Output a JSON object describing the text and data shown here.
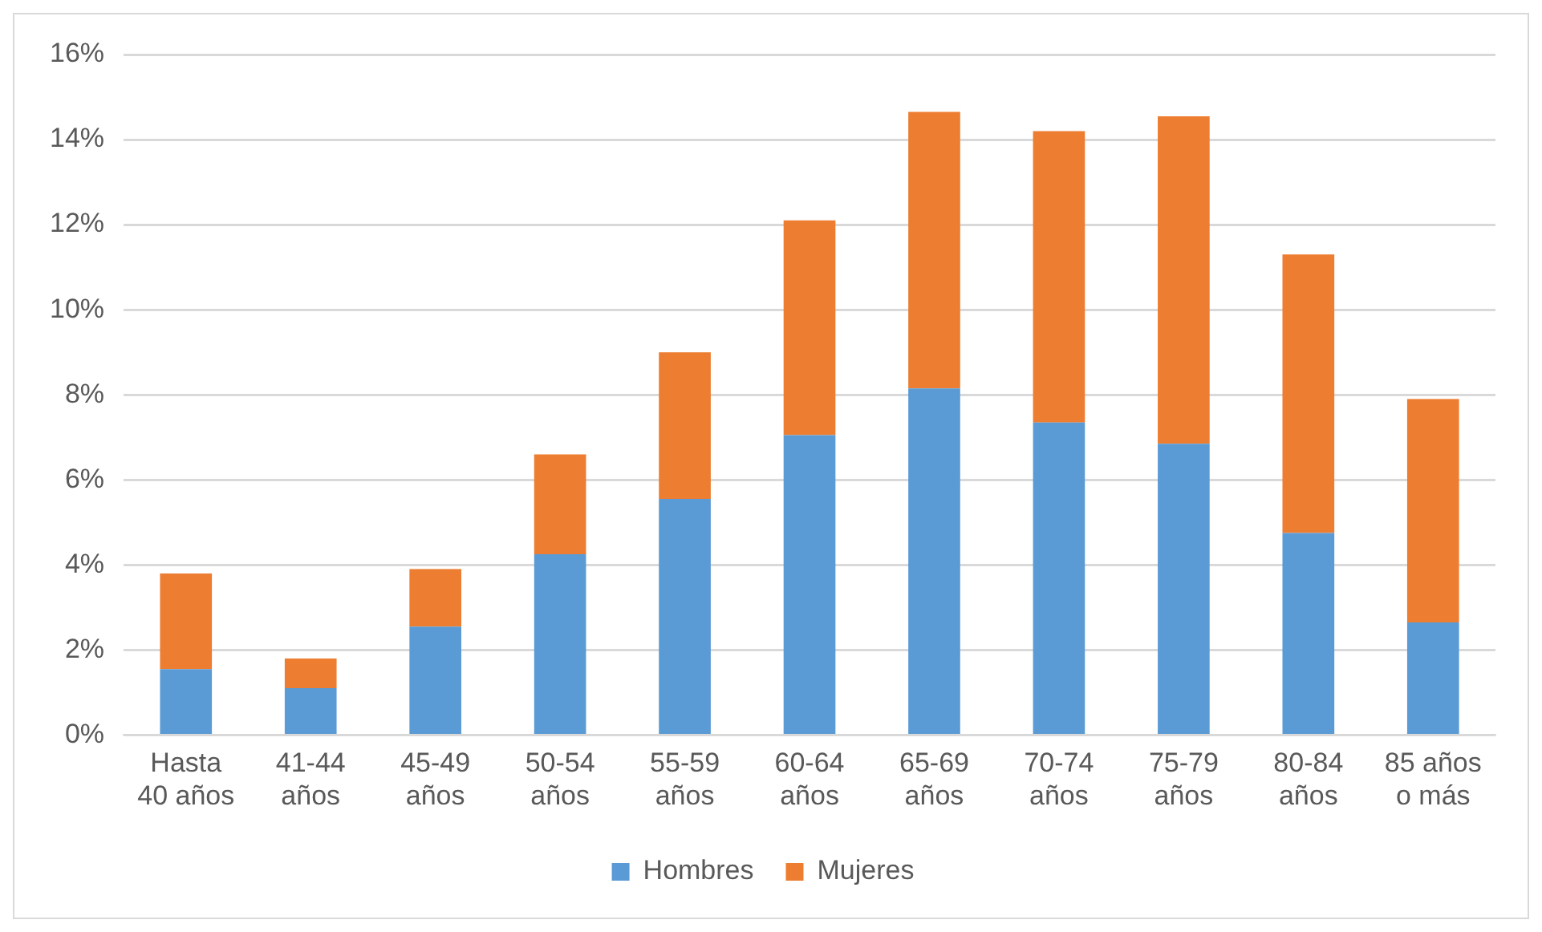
{
  "chart_data": {
    "type": "bar",
    "stacked": true,
    "categories": [
      "Hasta 40 años",
      "41-44 años",
      "45-49 años",
      "50-54 años",
      "55-59 años",
      "60-64 años",
      "65-69 años",
      "70-74 años",
      "75-79 años",
      "80-84 años",
      "85 años o más"
    ],
    "series": [
      {
        "name": "Hombres",
        "color": "#5b9bd5",
        "values": [
          1.55,
          1.1,
          2.55,
          4.25,
          5.55,
          7.05,
          8.15,
          7.35,
          6.85,
          4.75,
          2.65
        ]
      },
      {
        "name": "Mujeres",
        "color": "#ed7d31",
        "values": [
          2.25,
          0.7,
          1.35,
          2.35,
          3.45,
          5.05,
          6.5,
          6.85,
          7.7,
          6.55,
          5.25
        ]
      }
    ],
    "ylim": [
      0,
      16
    ],
    "yticks": [
      {
        "value": 0,
        "label": "0%"
      },
      {
        "value": 2,
        "label": "2%"
      },
      {
        "value": 4,
        "label": "4%"
      },
      {
        "value": 6,
        "label": "6%"
      },
      {
        "value": 8,
        "label": "8%"
      },
      {
        "value": 10,
        "label": "10%"
      },
      {
        "value": 12,
        "label": "12%"
      },
      {
        "value": 14,
        "label": "14%"
      },
      {
        "value": 16,
        "label": "16%"
      }
    ],
    "grid": "y",
    "legend": "bottom"
  }
}
